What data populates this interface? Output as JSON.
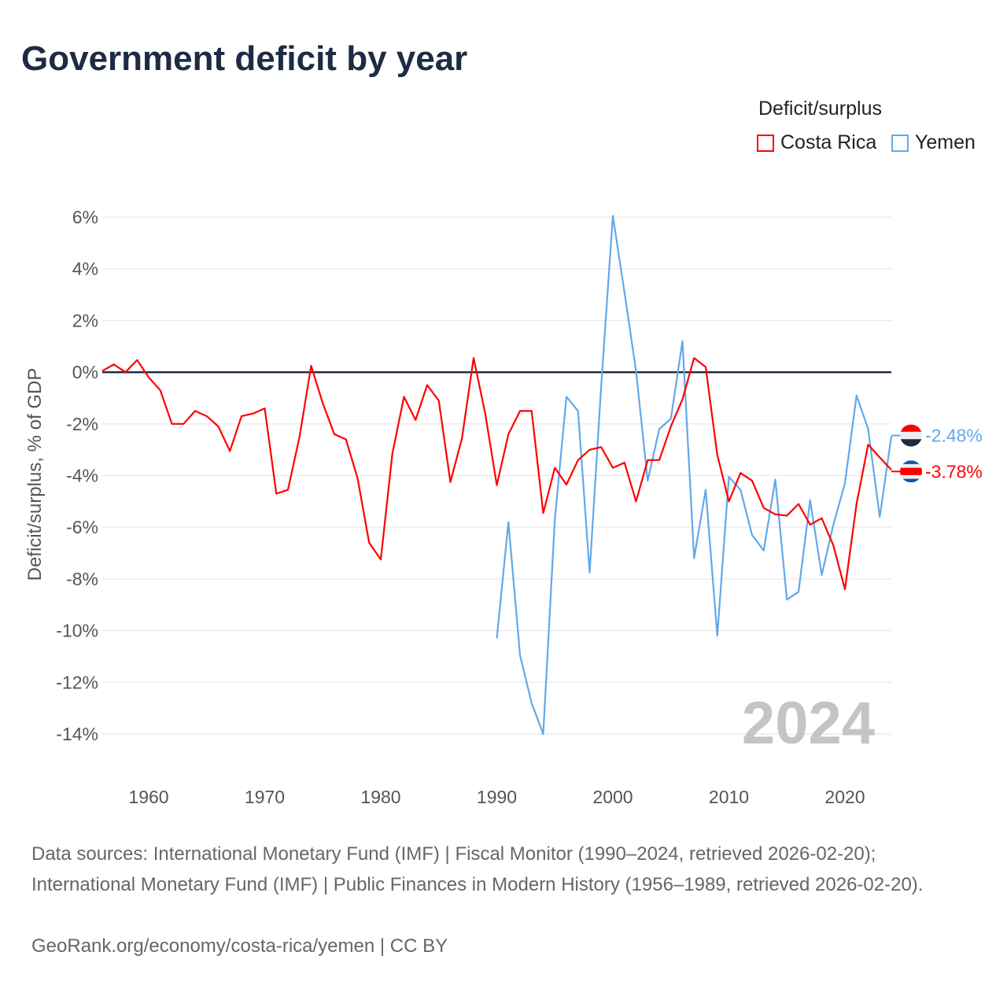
{
  "title": "Government deficit by year",
  "legend": {
    "title": "Deficit/surplus",
    "items": [
      {
        "label": "Costa Rica",
        "color": "#ff0000"
      },
      {
        "label": "Yemen",
        "color": "#63a8ea"
      }
    ]
  },
  "year_watermark": "2024",
  "footer": {
    "sources": "Data sources: International Monetary Fund (IMF) | Fiscal Monitor (1990–2024, retrieved 2026-02-20); International Monetary Fund (IMF) | Public Finances in Modern History (1956–1989, retrieved 2026-02-20).",
    "credit": "GeoRank.org/economy/costa-rica/yemen | CC BY"
  },
  "chart_data": {
    "type": "line",
    "title": "Government deficit by year",
    "xlabel": "",
    "ylabel": "Deficit/surplus, % of GDP",
    "xlim": [
      1956,
      2024
    ],
    "ylim": [
      -14,
      6
    ],
    "x_ticks": [
      1960,
      1970,
      1980,
      1990,
      2000,
      2010,
      2020
    ],
    "x_tick_labels": [
      "1960",
      "1970",
      "1980",
      "1990",
      "2000",
      "2010",
      "2020"
    ],
    "y_ticks": [
      6,
      4,
      2,
      0,
      -2,
      -4,
      -6,
      -8,
      -10,
      -12,
      -14
    ],
    "y_tick_labels": [
      "6%",
      "4%",
      "2%",
      "0%",
      "-2%",
      "-4%",
      "-6%",
      "-8%",
      "-10%",
      "-12%",
      "-14%"
    ],
    "grid": true,
    "legend_position": "top-right",
    "series": [
      {
        "name": "Costa Rica",
        "color": "#ff0000",
        "end_label": "-3.78%",
        "start_year": 1956,
        "values": [
          0.05,
          0.3,
          0,
          0.47,
          -0.2,
          -0.7,
          -2.0,
          -2.0,
          -1.5,
          -1.7,
          -2.1,
          -3.05,
          -1.7,
          -1.6,
          -1.4,
          -4.7,
          -4.55,
          -2.5,
          0.25,
          -1.2,
          -2.4,
          -2.6,
          -4.1,
          -6.6,
          -7.25,
          -3.15,
          -0.95,
          -1.85,
          -0.5,
          -1.1,
          -4.25,
          -2.55,
          0.55,
          -1.6,
          -4.37,
          -2.4,
          -1.5,
          -1.5,
          -5.45,
          -3.7,
          -4.35,
          -3.4,
          -3.0,
          -2.9,
          -3.7,
          -3.5,
          -5.0,
          -3.4,
          -3.4,
          -2.1,
          -1.05,
          0.55,
          0.2,
          -3.2,
          -5.0,
          -3.9,
          -4.2,
          -5.25,
          -5.5,
          -5.55,
          -5.1,
          -5.9,
          -5.65,
          -6.7,
          -8.4,
          -5.1,
          -2.8,
          -3.3,
          -3.78
        ]
      },
      {
        "name": "Yemen",
        "color": "#63a8ea",
        "end_label": "-2.48%",
        "start_year": 1990,
        "values": [
          -10.3,
          -5.8,
          -10.95,
          -12.8,
          -14.0,
          -5.7,
          -0.95,
          -1.5,
          -7.75,
          -0.5,
          6.05,
          3.1,
          0.05,
          -4.2,
          -2.2,
          -1.8,
          1.2,
          -7.2,
          -4.55,
          -10.2,
          -4.05,
          -4.55,
          -6.3,
          -6.9,
          -4.15,
          -8.8,
          -8.5,
          -4.95,
          -7.85,
          -5.9,
          -4.3,
          -0.9,
          -2.2,
          -5.6,
          -2.48
        ]
      }
    ]
  }
}
